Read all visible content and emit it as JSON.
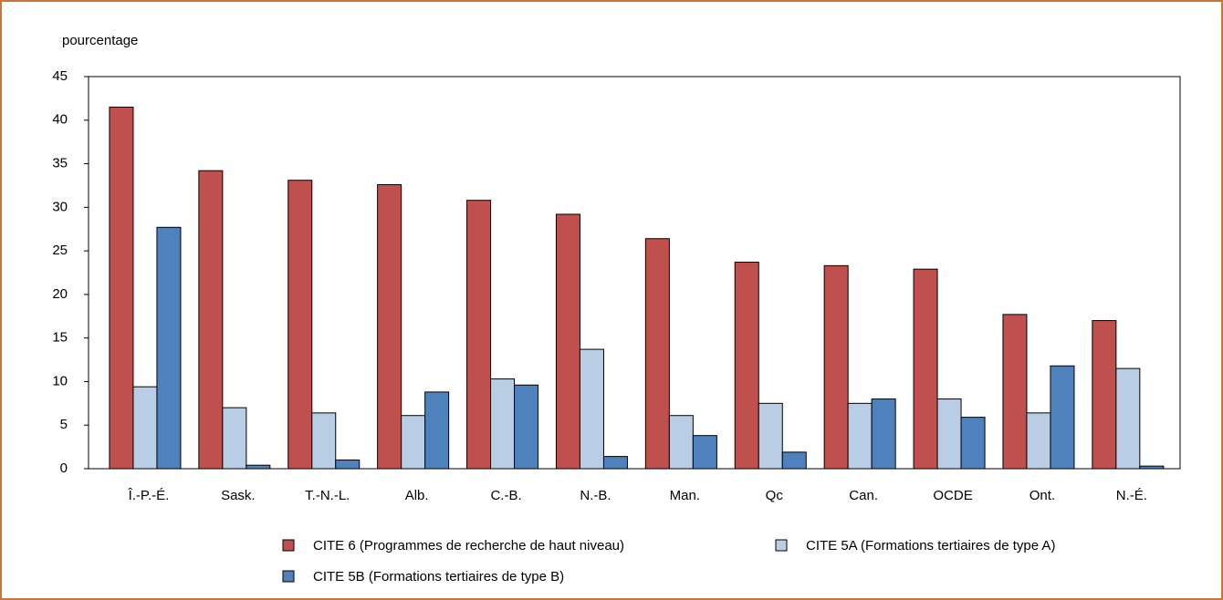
{
  "chart_data": {
    "type": "bar",
    "y_label": "pourcentage",
    "categories": [
      "Î.-P.-É.",
      "Sask.",
      "T.-N.-L.",
      "Alb.",
      "C.-B.",
      "N.-B.",
      "Man.",
      "Qc",
      "Can.",
      "OCDE",
      "Ont.",
      "N.-É."
    ],
    "series": [
      {
        "name": "CITE 6 (Programmes de recherche de haut niveau)",
        "color": "#c0504d",
        "values": [
          41.5,
          34.2,
          33.1,
          32.6,
          30.8,
          29.2,
          26.4,
          23.7,
          23.3,
          22.9,
          17.7,
          17.0
        ]
      },
      {
        "name": "CITE 5A (Formations tertiaires de type A)",
        "color": "#b9cde5",
        "values": [
          9.4,
          7.0,
          6.4,
          6.1,
          10.3,
          13.7,
          6.1,
          7.5,
          7.5,
          8.0,
          6.4,
          11.5
        ]
      },
      {
        "name": "CITE 5B (Formations tertiaires de type B)",
        "color": "#4f81bd",
        "values": [
          27.7,
          0.4,
          1.0,
          8.8,
          9.6,
          1.4,
          3.8,
          1.9,
          8.0,
          5.9,
          11.8,
          0.3
        ]
      }
    ],
    "ylim": [
      0,
      45
    ],
    "yticks": [
      0,
      5,
      10,
      15,
      20,
      25,
      30,
      35,
      40,
      45
    ]
  }
}
